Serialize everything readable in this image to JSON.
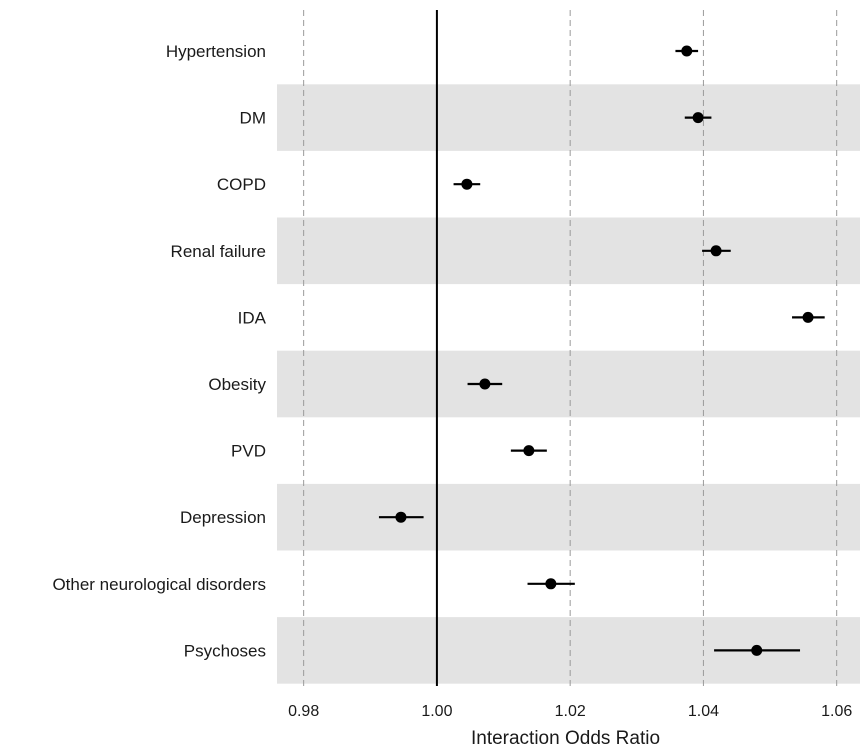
{
  "chart_data": {
    "type": "forest",
    "xlabel": "Interaction Odds Ratio",
    "xlim": [
      0.976,
      1.0635
    ],
    "xticks": [
      0.98,
      1.0,
      1.02,
      1.04,
      1.06
    ],
    "xtick_labels": [
      "0.98",
      "1.00",
      "1.02",
      "1.04",
      "1.06"
    ],
    "reference_line": 1.0,
    "grid": "vertical dashed",
    "row_shading": "alternating",
    "rows": [
      {
        "label": "Hypertension",
        "estimate": 1.0375,
        "lower": 1.0358,
        "upper": 1.0392
      },
      {
        "label": "DM",
        "estimate": 1.0392,
        "lower": 1.0372,
        "upper": 1.0412
      },
      {
        "label": "COPD",
        "estimate": 1.0045,
        "lower": 1.0025,
        "upper": 1.0065
      },
      {
        "label": "Renal failure",
        "estimate": 1.0419,
        "lower": 1.0398,
        "upper": 1.0441
      },
      {
        "label": "IDA",
        "estimate": 1.0557,
        "lower": 1.0533,
        "upper": 1.0582
      },
      {
        "label": "Obesity",
        "estimate": 1.0072,
        "lower": 1.0046,
        "upper": 1.0098
      },
      {
        "label": "PVD",
        "estimate": 1.0138,
        "lower": 1.0111,
        "upper": 1.0165
      },
      {
        "label": "Depression",
        "estimate": 0.9946,
        "lower": 0.9913,
        "upper": 0.998
      },
      {
        "label": "Other neurological disorders",
        "estimate": 1.0171,
        "lower": 1.0136,
        "upper": 1.0207
      },
      {
        "label": "Psychoses",
        "estimate": 1.048,
        "lower": 1.0416,
        "upper": 1.0545
      }
    ],
    "colors": {
      "point": "#000000",
      "ci": "#000000",
      "grid": "#9a9a9a",
      "ref_line": "#000000",
      "shade": "#e3e3e3",
      "text": "#1a1a1a"
    }
  }
}
